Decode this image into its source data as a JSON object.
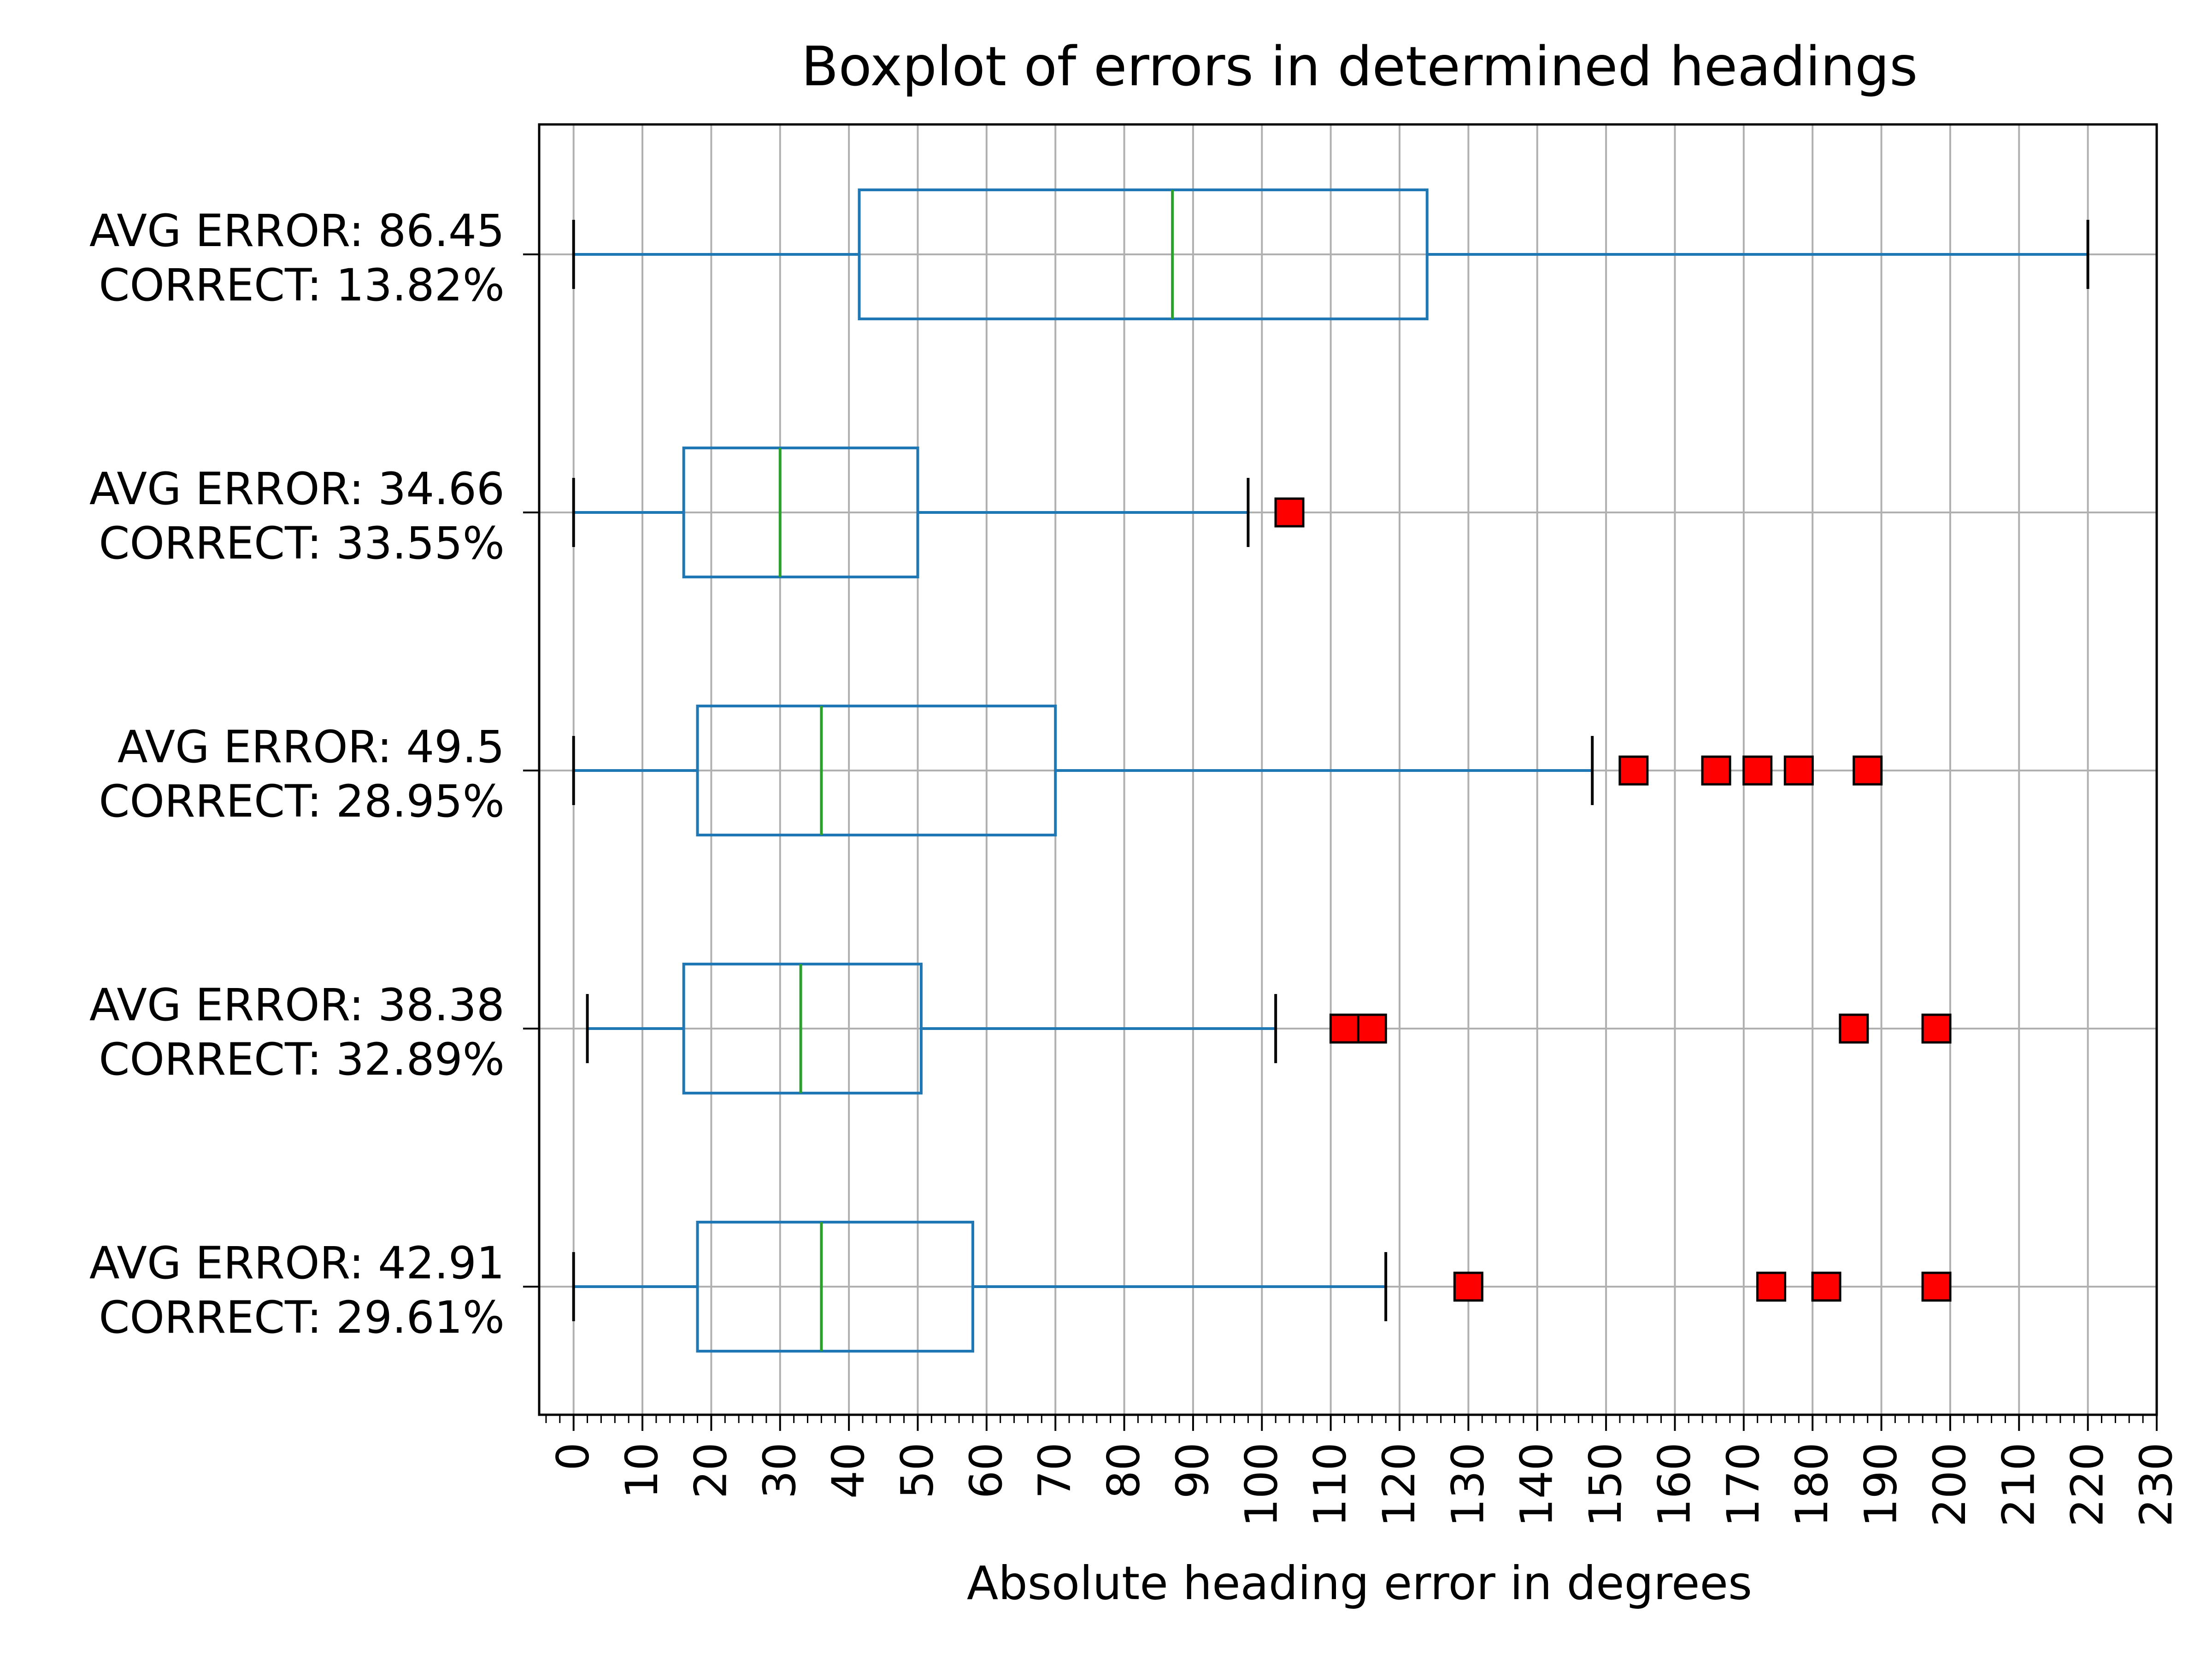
{
  "chart_data": {
    "type": "boxplot",
    "orientation": "horizontal",
    "title": "Boxplot of errors in determined headings",
    "xlabel": "Absolute heading error in degrees",
    "ylabel": "",
    "xlim": [
      -5,
      230
    ],
    "x_ticks": [
      0,
      10,
      20,
      30,
      40,
      50,
      60,
      70,
      80,
      90,
      100,
      110,
      120,
      130,
      140,
      150,
      160,
      170,
      180,
      190,
      200,
      210,
      220,
      230
    ],
    "x_tick_labels": [
      "0",
      "10",
      "20",
      "30",
      "40",
      "50",
      "60",
      "70",
      "80",
      "90",
      "100",
      "110",
      "120",
      "130",
      "140",
      "150",
      "160",
      "170",
      "180",
      "190",
      "200",
      "210",
      "220",
      "230"
    ],
    "x_minor_tick_step": 2,
    "grid": true,
    "colors": {
      "box": "#1f77b4",
      "median": "#2ca02c",
      "whisker_cap": "#000000",
      "outlier_fill": "#ff0000",
      "outlier_edge": "#000000",
      "grid": "#b0b0b0"
    },
    "boxes": [
      {
        "label_line1": "AVG ERROR: 86.45",
        "label_line2": "CORRECT: 13.82%",
        "whisker_low": 0,
        "q1": 41.5,
        "median": 87,
        "q3": 124,
        "whisker_high": 220,
        "outliers": []
      },
      {
        "label_line1": "AVG ERROR: 34.66",
        "label_line2": "CORRECT: 33.55%",
        "whisker_low": 0,
        "q1": 16,
        "median": 30,
        "q3": 50,
        "whisker_high": 98,
        "outliers": [
          104
        ]
      },
      {
        "label_line1": "AVG ERROR: 49.5",
        "label_line2": "CORRECT: 28.95%",
        "whisker_low": 0,
        "q1": 18,
        "median": 36,
        "q3": 70,
        "whisker_high": 148,
        "outliers": [
          154,
          166,
          172,
          178,
          188
        ]
      },
      {
        "label_line1": "AVG ERROR: 38.38",
        "label_line2": "CORRECT: 32.89%",
        "whisker_low": 2,
        "q1": 16,
        "median": 33,
        "q3": 50.5,
        "whisker_high": 102,
        "outliers": [
          112,
          116,
          186,
          198
        ]
      },
      {
        "label_line1": "AVG ERROR: 42.91",
        "label_line2": "CORRECT: 29.61%",
        "whisker_low": 0,
        "q1": 18,
        "median": 36,
        "q3": 58,
        "whisker_high": 118,
        "outliers": [
          130,
          174,
          182,
          198
        ]
      }
    ]
  }
}
